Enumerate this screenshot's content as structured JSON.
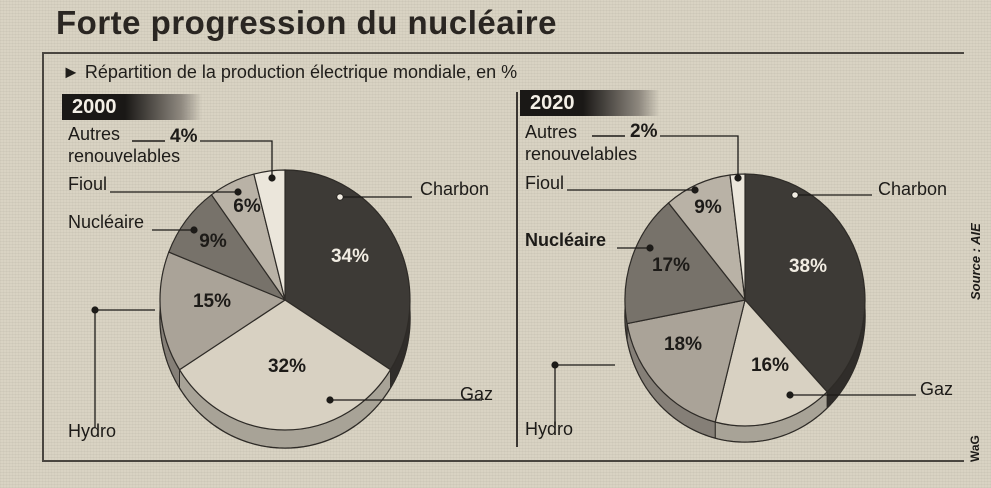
{
  "title": "Forte progression du nucléaire",
  "subtitle": "Répartition de la production électrique mondiale, en %",
  "source": "Source : AIE",
  "credit": "WaG",
  "colors": {
    "charbon": "#3d3a36",
    "gaz": "#d8d1c2",
    "hydro": "#aaa398",
    "nucleaire": "#77726a",
    "fioul": "#b9b2a6",
    "autres": "#ebe6db"
  },
  "chart_data": [
    {
      "type": "pie",
      "title": "2000",
      "slices": [
        {
          "label": "Charbon",
          "value": 34,
          "display": "34%"
        },
        {
          "label": "Gaz",
          "value": 32,
          "display": "32%"
        },
        {
          "label": "Hydro",
          "value": 15,
          "display": "15%"
        },
        {
          "label": "Nucléaire",
          "value": 9,
          "display": "9%"
        },
        {
          "label": "Fioul",
          "value": 6,
          "display": "6%"
        },
        {
          "label": "Autres renouvelables",
          "label_lines": [
            "Autres",
            "renouvelables"
          ],
          "value": 4,
          "display": "4%"
        }
      ]
    },
    {
      "type": "pie",
      "title": "2020",
      "slices": [
        {
          "label": "Charbon",
          "value": 38,
          "display": "38%"
        },
        {
          "label": "Gaz",
          "value": 16,
          "display": "16%"
        },
        {
          "label": "Hydro",
          "value": 18,
          "display": "18%"
        },
        {
          "label": "Nucléaire",
          "value": 17,
          "display": "17%"
        },
        {
          "label": "Fioul",
          "value": 9,
          "display": "9%"
        },
        {
          "label": "Autres renouvelables",
          "label_lines": [
            "Autres",
            "renouvelables"
          ],
          "value": 2,
          "display": "2%"
        }
      ]
    }
  ]
}
